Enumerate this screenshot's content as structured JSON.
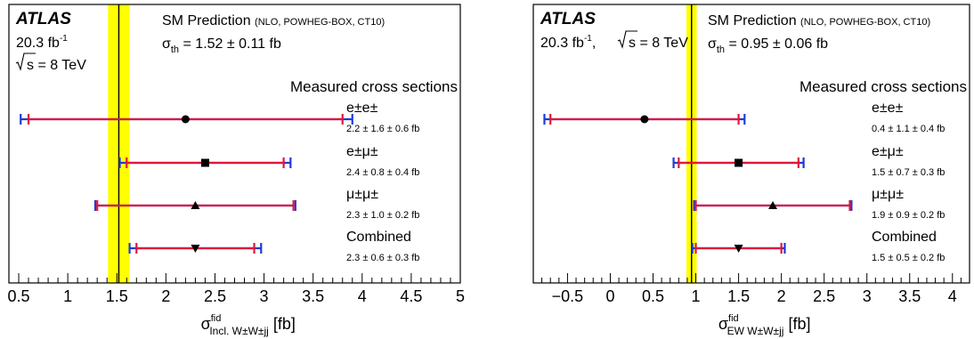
{
  "chart_data": [
    {
      "type": "errorbar",
      "atlas_label": "ATLAS",
      "lumi_value": "20.3 fb",
      "lumi_exp": "-1",
      "energy_text": "s = 8 TeV",
      "sm_title": "SM Prediction",
      "sm_details": "(NLO, POWHEG-BOX, CT10)",
      "sm_sigma_sub": "th",
      "sm_value_text": " = 1.52 ± 0.11 fb",
      "sm_central": 1.52,
      "sm_band": [
        1.41,
        1.63
      ],
      "measured_header": "Measured cross sections",
      "xlim": [
        0.4,
        5.0
      ],
      "xticks": [
        "0.5",
        "1",
        "1.5",
        "2",
        "2.5",
        "3",
        "3.5",
        "4",
        "4.5",
        "5"
      ],
      "xtick_values": [
        0.5,
        1,
        1.5,
        2,
        2.5,
        3,
        3.5,
        4,
        4.5,
        5
      ],
      "xlabel_main": "σ",
      "xlabel_sup": "fid",
      "xlabel_sub": "Incl. W±W±jj",
      "xlabel_unit": " [fb]",
      "entries": [
        {
          "label": "e±e±",
          "result": "2.2 ± 1.6 ± 0.6 fb",
          "value": 2.2,
          "stat_low": 0.6,
          "stat_high": 3.8,
          "tot_low": 0.52,
          "tot_high": 3.9,
          "marker": "circle"
        },
        {
          "label": "e±μ±",
          "result": "2.4 ± 0.8 ± 0.4 fb",
          "value": 2.4,
          "stat_low": 1.6,
          "stat_high": 3.2,
          "tot_low": 1.53,
          "tot_high": 3.27,
          "marker": "square"
        },
        {
          "label": "μ±μ±",
          "result": "2.3 ± 1.0 ± 0.2 fb",
          "value": 2.3,
          "stat_low": 1.3,
          "stat_high": 3.3,
          "tot_low": 1.28,
          "tot_high": 3.32,
          "marker": "triangle-up"
        },
        {
          "label": "Combined",
          "result": "2.3 ± 0.6 ± 0.3 fb",
          "value": 2.3,
          "stat_low": 1.7,
          "stat_high": 2.9,
          "tot_low": 1.63,
          "tot_high": 2.97,
          "marker": "triangle-down"
        }
      ]
    },
    {
      "type": "errorbar",
      "atlas_label": "ATLAS",
      "lumi_value": "20.3 fb",
      "lumi_exp": "-1",
      "energy_text": "s = 8 TeV",
      "sm_title": "SM Prediction",
      "sm_details": "(NLO, POWHEG-BOX, CT10)",
      "sm_sigma_sub": "th",
      "sm_value_text": " = 0.95 ± 0.06 fb",
      "sm_central": 0.95,
      "sm_band": [
        0.89,
        1.01
      ],
      "measured_header": "Measured cross sections",
      "xlim": [
        -0.9,
        4.2
      ],
      "xticks": [
        "−0.5",
        "0",
        "0.5",
        "1",
        "1.5",
        "2",
        "2.5",
        "3",
        "3.5",
        "4"
      ],
      "xtick_values": [
        -0.5,
        0,
        0.5,
        1,
        1.5,
        2,
        2.5,
        3,
        3.5,
        4
      ],
      "xlabel_main": "σ",
      "xlabel_sup": "fid",
      "xlabel_sub": "EW W±W±jj",
      "xlabel_unit": " [fb]",
      "entries": [
        {
          "label": "e±e±",
          "result": "0.4 ± 1.1 ± 0.4 fb",
          "value": 0.4,
          "stat_low": -0.7,
          "stat_high": 1.5,
          "tot_low": -0.77,
          "tot_high": 1.57,
          "marker": "circle"
        },
        {
          "label": "e±μ±",
          "result": "1.5 ± 0.7 ± 0.3 fb",
          "value": 1.5,
          "stat_low": 0.8,
          "stat_high": 2.2,
          "tot_low": 0.74,
          "tot_high": 2.26,
          "marker": "square"
        },
        {
          "label": "μ±μ±",
          "result": "1.9 ± 0.9 ± 0.2 fb",
          "value": 1.9,
          "stat_low": 1.0,
          "stat_high": 2.8,
          "tot_low": 0.98,
          "tot_high": 2.82,
          "marker": "triangle-up"
        },
        {
          "label": "Combined",
          "result": "1.5 ± 0.5 ± 0.2 fb",
          "value": 1.5,
          "stat_low": 1.0,
          "stat_high": 2.0,
          "tot_low": 0.96,
          "tot_high": 2.04,
          "marker": "triangle-down"
        }
      ]
    }
  ]
}
